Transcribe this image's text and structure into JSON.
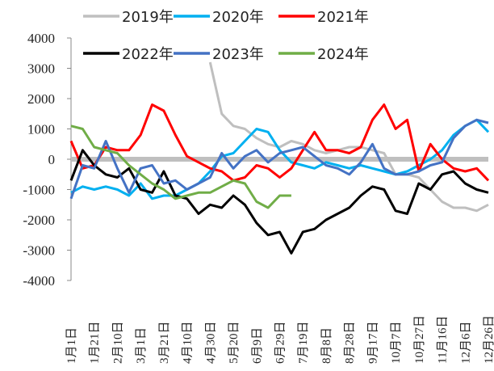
{
  "chart_data": {
    "type": "line",
    "categories": [
      "1月1日",
      null,
      "1月21日",
      null,
      "2月10日",
      null,
      "3月1日",
      null,
      "3月21日",
      null,
      "4月10日",
      null,
      "4月30日",
      null,
      "5月20日",
      null,
      "6月9日",
      null,
      "6月29日",
      null,
      "7月19日",
      null,
      "8月8日",
      null,
      "8月28日",
      null,
      "9月17日",
      null,
      "10月7日",
      null,
      "10月27日",
      null,
      "11月16日",
      null,
      "12月6日",
      null,
      "12月26日"
    ],
    "series": [
      {
        "name": "2019年",
        "color": "#bfbfbf",
        "values": [
          null,
          null,
          null,
          null,
          null,
          null,
          null,
          null,
          null,
          null,
          null,
          null,
          3200,
          1500,
          1100,
          1000,
          700,
          500,
          400,
          600,
          500,
          300,
          200,
          300,
          400,
          400,
          300,
          200,
          -500,
          -500,
          -600,
          -1000,
          -1400,
          -1600,
          -1600,
          -1700,
          -1500
        ]
      },
      {
        "name": "2020年",
        "color": "#00b0f0",
        "values": [
          -1100,
          -900,
          -1000,
          -900,
          -1000,
          -1200,
          -800,
          -1300,
          -1200,
          -1200,
          -1000,
          -800,
          -400,
          100,
          200,
          600,
          1000,
          900,
          300,
          -100,
          -200,
          -300,
          -100,
          -200,
          -300,
          -200,
          -300,
          -400,
          -500,
          -400,
          -200,
          0,
          300,
          800,
          1100,
          1300,
          900
        ]
      },
      {
        "name": "2021年",
        "color": "#ff0000",
        "values": [
          600,
          -300,
          -200,
          400,
          300,
          300,
          800,
          1800,
          1600,
          800,
          100,
          -100,
          -300,
          -400,
          -700,
          -600,
          -200,
          -300,
          -600,
          -300,
          300,
          900,
          300,
          300,
          200,
          400,
          1300,
          1800,
          1000,
          1300,
          -400,
          500,
          0,
          -300,
          -400,
          -300,
          -700
        ]
      },
      {
        "name": "2022年",
        "color": "#000000",
        "values": [
          -700,
          300,
          -200,
          -500,
          -600,
          -300,
          -1000,
          -1100,
          -400,
          -1200,
          -1300,
          -1800,
          -1500,
          -1600,
          -1200,
          -1500,
          -2100,
          -2500,
          -2400,
          -3100,
          -2400,
          -2300,
          -2000,
          -1800,
          -1600,
          -1200,
          -900,
          -1000,
          -1700,
          -1800,
          -800,
          -1000,
          -500,
          -400,
          -800,
          -1000,
          -1100
        ]
      },
      {
        "name": "2023年",
        "color": "#4472c4",
        "values": [
          -1300,
          -200,
          -300,
          600,
          -300,
          -1100,
          -300,
          -200,
          -800,
          -700,
          -1000,
          -800,
          -600,
          200,
          -300,
          100,
          300,
          -100,
          200,
          300,
          400,
          100,
          -200,
          -300,
          -500,
          -100,
          500,
          -300,
          -500,
          -500,
          -400,
          -200,
          -100,
          700,
          1100,
          1300,
          1200
        ]
      },
      {
        "name": "2024年",
        "color": "#70ad47",
        "values": [
          1100,
          1000,
          400,
          300,
          200,
          -200,
          -500,
          -800,
          -1000,
          -1300,
          -1200,
          -1100,
          -1100,
          -900,
          -700,
          -800,
          -1400,
          -1600,
          -1200,
          -1200,
          null,
          null,
          null,
          null,
          null,
          null,
          null,
          null,
          null,
          null,
          null,
          null,
          null,
          null,
          null,
          null,
          null
        ]
      }
    ],
    "ylim": [
      -4000,
      4000
    ],
    "yticks": [
      -4000,
      -3000,
      -2000,
      -1000,
      0,
      1000,
      2000,
      3000,
      4000
    ]
  }
}
